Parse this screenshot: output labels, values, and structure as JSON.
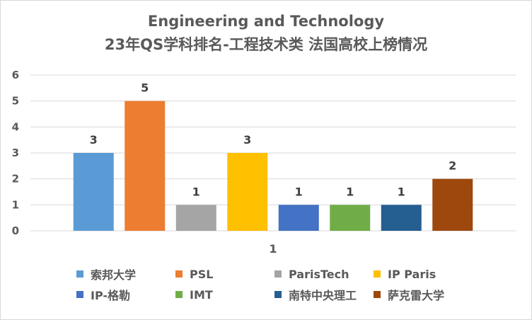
{
  "chart_data": {
    "type": "bar",
    "title": "Engineering and Technology",
    "subtitle": "23年QS学科排名-工程技术类 法国高校上榜情况",
    "categories": [
      "1"
    ],
    "ylim": [
      0,
      6
    ],
    "yticks": [
      "0",
      "1",
      "2",
      "3",
      "4",
      "5",
      "6"
    ],
    "ytick_values": [
      0,
      1,
      2,
      3,
      4,
      5,
      6
    ],
    "grid": true,
    "legend_position": "bottom",
    "series": [
      {
        "name": "索邦大学",
        "values": [
          3
        ],
        "label": "3",
        "color": "#5b9bd5"
      },
      {
        "name": "PSL",
        "values": [
          5
        ],
        "label": "5",
        "color": "#ed7d31"
      },
      {
        "name": "ParisTech",
        "values": [
          1
        ],
        "label": "1",
        "color": "#a5a5a5"
      },
      {
        "name": "IP Paris",
        "values": [
          3
        ],
        "label": "3",
        "color": "#ffc000"
      },
      {
        "name": "IP-格勒",
        "values": [
          1
        ],
        "label": "1",
        "color": "#4472c4"
      },
      {
        "name": "IMT",
        "values": [
          1
        ],
        "label": "1",
        "color": "#70ad47"
      },
      {
        "name": "南特中央理工",
        "values": [
          1
        ],
        "label": "1",
        "color": "#255e91"
      },
      {
        "name": "萨克雷大学",
        "values": [
          2
        ],
        "label": "2",
        "color": "#9e480e"
      }
    ]
  }
}
